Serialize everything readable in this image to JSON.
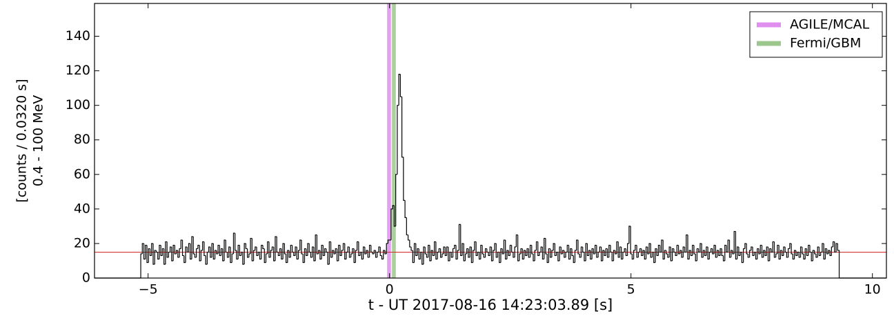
{
  "chart_data": {
    "type": "histogram",
    "xlabel": "t - UT 2017-08-16 14:23:03.89 [s]",
    "ylabel": [
      "[counts / 0.0320 s]",
      "0.4 - 100 MeV"
    ],
    "xlim": [
      -6.11,
      10.29
    ],
    "ylim": [
      0,
      159
    ],
    "xticks": [
      {
        "value": -5,
        "label": "−5"
      },
      0,
      5,
      10
    ],
    "yticks": [
      0,
      20,
      40,
      60,
      80,
      100,
      120,
      140
    ],
    "color": "#000000",
    "hline": {
      "value": 15,
      "color": "#d62728"
    },
    "spans": [
      {
        "name": "AGILE/MCAL",
        "color": "#e08ef0",
        "x": [
          -0.05,
          0.03
        ]
      },
      {
        "name": "Fermi/GBM",
        "color": "#9cc78c",
        "x": [
          0.05,
          0.13
        ]
      }
    ],
    "legend": "upper right",
    "bins": [
      -5.152,
      -5.12,
      -5.088,
      -5.056,
      -5.024,
      -4.992,
      -4.96,
      -4.928,
      -4.896,
      -4.864,
      -4.832,
      -4.8,
      -4.768,
      -4.736,
      -4.704,
      -4.672,
      -4.64,
      -4.608,
      -4.576,
      -4.544,
      -4.512,
      -4.48,
      -4.448,
      -4.416,
      -4.384,
      -4.352,
      -4.32,
      -4.288,
      -4.256,
      -4.224,
      -4.192,
      -4.16,
      -4.128,
      -4.096,
      -4.064,
      -4.032,
      -4,
      -3.968,
      -3.936,
      -3.904,
      -3.872,
      -3.84,
      -3.808,
      -3.776,
      -3.744,
      -3.712,
      -3.68,
      -3.648,
      -3.616,
      -3.584,
      -3.552,
      -3.52,
      -3.488,
      -3.456,
      -3.424,
      -3.392,
      -3.36,
      -3.328,
      -3.296,
      -3.264,
      -3.232,
      -3.2,
      -3.168,
      -3.136,
      -3.104,
      -3.072,
      -3.04,
      -3.008,
      -2.976,
      -2.944,
      -2.912,
      -2.88,
      -2.848,
      -2.816,
      -2.784,
      -2.752,
      -2.72,
      -2.688,
      -2.656,
      -2.624,
      -2.592,
      -2.56,
      -2.528,
      -2.496,
      -2.464,
      -2.432,
      -2.4,
      -2.368,
      -2.336,
      -2.304,
      -2.272,
      -2.24,
      -2.208,
      -2.176,
      -2.144,
      -2.112,
      -2.08,
      -2.048,
      -2.016,
      -1.984,
      -1.952,
      -1.92,
      -1.888,
      -1.856,
      -1.824,
      -1.792,
      -1.76,
      -1.728,
      -1.696,
      -1.664,
      -1.632,
      -1.6,
      -1.568,
      -1.536,
      -1.504,
      -1.472,
      -1.44,
      -1.408,
      -1.376,
      -1.344,
      -1.312,
      -1.28,
      -1.248,
      -1.216,
      -1.184,
      -1.152,
      -1.12,
      -1.088,
      -1.056,
      -1.024,
      -0.992,
      -0.96,
      -0.928,
      -0.896,
      -0.864,
      -0.832,
      -0.8,
      -0.768,
      -0.736,
      -0.704,
      -0.672,
      -0.64,
      -0.608,
      -0.576,
      -0.544,
      -0.512,
      -0.48,
      -0.448,
      -0.416,
      -0.384,
      -0.352,
      -0.32,
      -0.288,
      -0.256,
      -0.224,
      -0.192,
      -0.16,
      -0.128,
      -0.096,
      -0.064,
      -0.032,
      0,
      0.032,
      0.064,
      0.096,
      0.128,
      0.16,
      0.192,
      0.224,
      0.256,
      0.288,
      0.32,
      0.352,
      0.384,
      0.416,
      0.448,
      0.48,
      0.512,
      0.544,
      0.576,
      0.608,
      0.64,
      0.672,
      0.704,
      0.736,
      0.768,
      0.8,
      0.832,
      0.864,
      0.896,
      0.928,
      0.96,
      0.992,
      1.024,
      1.056,
      1.088,
      1.12,
      1.152,
      1.184,
      1.216,
      1.248,
      1.28,
      1.312,
      1.344,
      1.376,
      1.408,
      1.44,
      1.472,
      1.504,
      1.536,
      1.568,
      1.6,
      1.632,
      1.664,
      1.696,
      1.728,
      1.76,
      1.792,
      1.824,
      1.856,
      1.888,
      1.92,
      1.952,
      1.984,
      2.016,
      2.048,
      2.08,
      2.112,
      2.144,
      2.176,
      2.208,
      2.24,
      2.272,
      2.304,
      2.336,
      2.368,
      2.4,
      2.432,
      2.464,
      2.496,
      2.528,
      2.56,
      2.592,
      2.624,
      2.656,
      2.688,
      2.72,
      2.752,
      2.784,
      2.816,
      2.848,
      2.88,
      2.912,
      2.944,
      2.976,
      3.008,
      3.04,
      3.072,
      3.104,
      3.136,
      3.168,
      3.2,
      3.232,
      3.264,
      3.296,
      3.328,
      3.36,
      3.392,
      3.424,
      3.456,
      3.488,
      3.52,
      3.552,
      3.584,
      3.616,
      3.648,
      3.68,
      3.712,
      3.744,
      3.776,
      3.808,
      3.84,
      3.872,
      3.904,
      3.936,
      3.968,
      4,
      4.032,
      4.064,
      4.096,
      4.128,
      4.16,
      4.192,
      4.224,
      4.256,
      4.288,
      4.32,
      4.352,
      4.384,
      4.416,
      4.448,
      4.48,
      4.512,
      4.544,
      4.576,
      4.608,
      4.64,
      4.672,
      4.704,
      4.736,
      4.768,
      4.8,
      4.832,
      4.864,
      4.896,
      4.928,
      4.96,
      4.992,
      5.024,
      5.056,
      5.088,
      5.12,
      5.152,
      5.184,
      5.216,
      5.248,
      5.28,
      5.312,
      5.344,
      5.376,
      5.408,
      5.44,
      5.472,
      5.504,
      5.536,
      5.568,
      5.6,
      5.632,
      5.664,
      5.696,
      5.728,
      5.76,
      5.792,
      5.824,
      5.856,
      5.888,
      5.92,
      5.952,
      5.984,
      6.016,
      6.048,
      6.08,
      6.112,
      6.144,
      6.176,
      6.208,
      6.24,
      6.272,
      6.304,
      6.336,
      6.368,
      6.4,
      6.432,
      6.464,
      6.496,
      6.528,
      6.56,
      6.592,
      6.624,
      6.656,
      6.688,
      6.72,
      6.752,
      6.784,
      6.816,
      6.848,
      6.88,
      6.912,
      6.944,
      6.976,
      7.008,
      7.04,
      7.072,
      7.104,
      7.136,
      7.168,
      7.2,
      7.232,
      7.264,
      7.296,
      7.328,
      7.36,
      7.392,
      7.424,
      7.456,
      7.488,
      7.52,
      7.552,
      7.584,
      7.616,
      7.648,
      7.68,
      7.712,
      7.744,
      7.776,
      7.808,
      7.84,
      7.872,
      7.904,
      7.936,
      7.968,
      8,
      8.032,
      8.064,
      8.096,
      8.128,
      8.16,
      8.192,
      8.224,
      8.256,
      8.288,
      8.32,
      8.352,
      8.384,
      8.416,
      8.448,
      8.48,
      8.512,
      8.544,
      8.576,
      8.608,
      8.64,
      8.672,
      8.704,
      8.736,
      8.768,
      8.8,
      8.832,
      8.864,
      8.896,
      8.928,
      8.96,
      8.992,
      9.024,
      9.056,
      9.088,
      9.12,
      9.152,
      9.184,
      9.216,
      9.248,
      9.28,
      9.312
    ],
    "values": [
      14,
      20,
      11,
      19,
      9,
      17,
      13,
      20,
      8,
      16,
      15,
      11,
      19,
      13,
      17,
      8,
      21,
      12,
      15,
      18,
      10,
      19,
      14,
      16,
      12,
      17,
      22,
      13,
      9,
      18,
      15,
      20,
      11,
      24,
      14,
      12,
      17,
      19,
      10,
      16,
      21,
      13,
      8,
      15,
      18,
      12,
      20,
      11,
      16,
      14,
      19,
      13,
      17,
      10,
      22,
      15,
      12,
      18,
      9,
      14,
      26,
      16,
      11,
      19,
      13,
      15,
      8,
      20,
      17,
      12,
      14,
      23,
      10,
      16,
      18,
      13,
      15,
      11,
      19,
      17,
      9,
      14,
      21,
      12,
      16,
      18,
      10,
      24,
      15,
      13,
      17,
      11,
      20,
      14,
      9,
      16,
      12,
      19,
      15,
      13,
      18,
      11,
      16,
      22,
      14,
      9,
      17,
      13,
      20,
      15,
      12,
      18,
      10,
      25,
      14,
      16,
      11,
      19,
      13,
      17,
      15,
      8,
      21,
      12,
      16,
      14,
      17,
      10,
      19,
      13,
      16,
      20,
      11,
      15,
      18,
      12,
      14,
      17,
      9,
      16,
      21,
      13,
      15,
      11,
      18,
      14,
      16,
      12,
      19,
      15,
      14,
      16,
      12,
      15,
      18,
      13,
      11,
      16,
      14,
      20,
      22,
      22,
      40,
      42,
      30,
      60,
      100,
      118,
      105,
      70,
      45,
      35,
      25,
      22,
      18,
      16,
      9,
      20,
      13,
      17,
      11,
      15,
      8,
      18,
      14,
      12,
      19,
      10,
      16,
      13,
      21,
      11,
      15,
      17,
      12,
      14,
      18,
      13,
      18,
      10,
      15,
      12,
      17,
      19,
      11,
      16,
      31,
      13,
      20,
      10,
      14,
      17,
      12,
      18,
      9,
      16,
      21,
      13,
      15,
      11,
      19,
      14,
      12,
      17,
      15,
      13,
      18,
      10,
      16,
      20,
      12,
      15,
      9,
      17,
      14,
      22,
      11,
      16,
      13,
      19,
      15,
      12,
      18,
      25,
      10,
      14,
      17,
      11,
      16,
      13,
      17,
      12,
      19,
      14,
      10,
      16,
      21,
      13,
      15,
      18,
      11,
      23,
      14,
      9,
      17,
      12,
      16,
      20,
      13,
      15,
      10,
      18,
      14,
      16,
      12,
      15,
      19,
      11,
      17,
      13,
      9,
      16,
      22,
      14,
      12,
      18,
      15,
      10,
      20,
      13,
      16,
      11,
      17,
      14,
      19,
      12,
      15,
      18,
      10,
      16,
      13,
      17,
      12,
      19,
      15,
      10,
      16,
      14,
      21,
      12,
      18,
      11,
      15,
      17,
      13,
      20,
      30,
      14,
      11,
      16,
      19,
      12,
      15,
      17,
      13,
      16,
      11,
      18,
      14,
      20,
      12,
      15,
      9,
      17,
      13,
      19,
      15,
      22,
      11,
      16,
      14,
      12,
      18,
      10,
      17,
      15,
      13,
      19,
      14,
      16,
      12,
      18,
      15,
      25,
      11,
      16,
      13,
      19,
      14,
      10,
      17,
      15,
      20,
      12,
      16,
      13,
      18,
      11,
      15,
      17,
      14,
      19,
      12,
      16,
      13,
      17,
      13,
      10,
      19,
      15,
      22,
      12,
      16,
      14,
      27,
      11,
      18,
      13,
      15,
      9,
      17,
      20,
      14,
      12,
      16,
      18,
      13,
      15,
      11,
      17,
      14,
      19,
      12,
      16,
      13,
      18,
      10,
      17,
      15,
      21,
      12,
      14,
      19,
      11,
      16,
      13,
      18,
      15,
      12,
      17,
      20,
      14,
      11,
      16,
      13,
      15,
      12,
      18,
      14,
      11,
      17,
      13,
      19,
      15,
      10,
      16,
      14,
      12,
      18,
      13,
      15,
      20,
      11,
      17,
      14,
      16,
      13,
      18,
      21,
      15,
      20,
      16
    ]
  }
}
